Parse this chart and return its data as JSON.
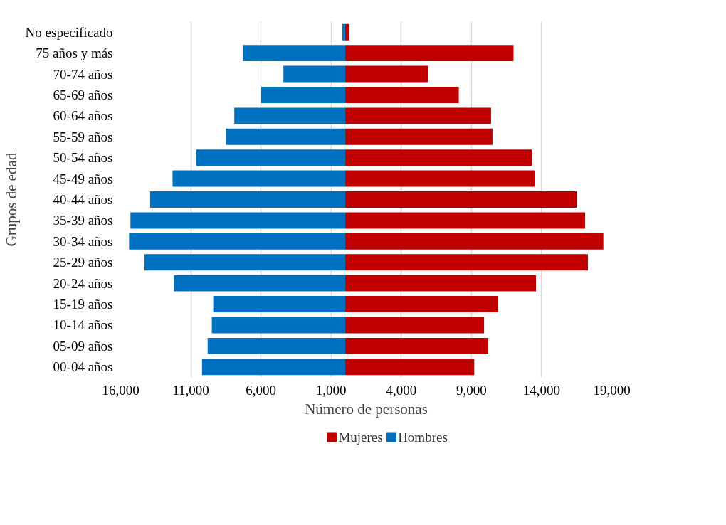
{
  "chart_data": {
    "type": "bar",
    "orientation": "horizontal",
    "stacked": true,
    "xlabel": "Número de personas",
    "ylabel": "Grupos de edad",
    "categories": [
      "No especificado",
      "75 años y más",
      "70-74 años",
      "65-69 años",
      "60-64 años",
      "55-59 años",
      "50-54 años",
      "45-49 años",
      "40-44 años",
      "35-39 años",
      "30-34 años",
      "25-29 años",
      "20-24 años",
      "15-19 años",
      "10-14 años",
      "05-09 años",
      "00-04 años"
    ],
    "series": [
      {
        "name": "Mujeres",
        "color": "#c00000",
        "values": [
          300,
          12000,
          5900,
          8100,
          10400,
          10500,
          13300,
          13500,
          16500,
          17100,
          18400,
          17300,
          13600,
          10900,
          9900,
          10200,
          9200
        ]
      },
      {
        "name": "Hombres",
        "color": "#0070c0",
        "values": [
          -200,
          -7300,
          -4400,
          -6000,
          -7900,
          -8500,
          -10600,
          -12300,
          -13900,
          -15300,
          -15400,
          -14300,
          -12200,
          -9400,
          -9500,
          -9800,
          -10200
        ]
      }
    ],
    "xlim": [
      -16000,
      19000
    ],
    "xticks": [
      {
        "value": -16000,
        "label": "16,000"
      },
      {
        "value": -11000,
        "label": "11,000"
      },
      {
        "value": -6000,
        "label": "6,000"
      },
      {
        "value": -1000,
        "label": "1,000"
      },
      {
        "value": 4000,
        "label": "4,000"
      },
      {
        "value": 9000,
        "label": "9,000"
      },
      {
        "value": 14000,
        "label": "14,000"
      },
      {
        "value": 19000,
        "label": "19,000"
      }
    ],
    "grid": "x",
    "legend": "bottom"
  }
}
